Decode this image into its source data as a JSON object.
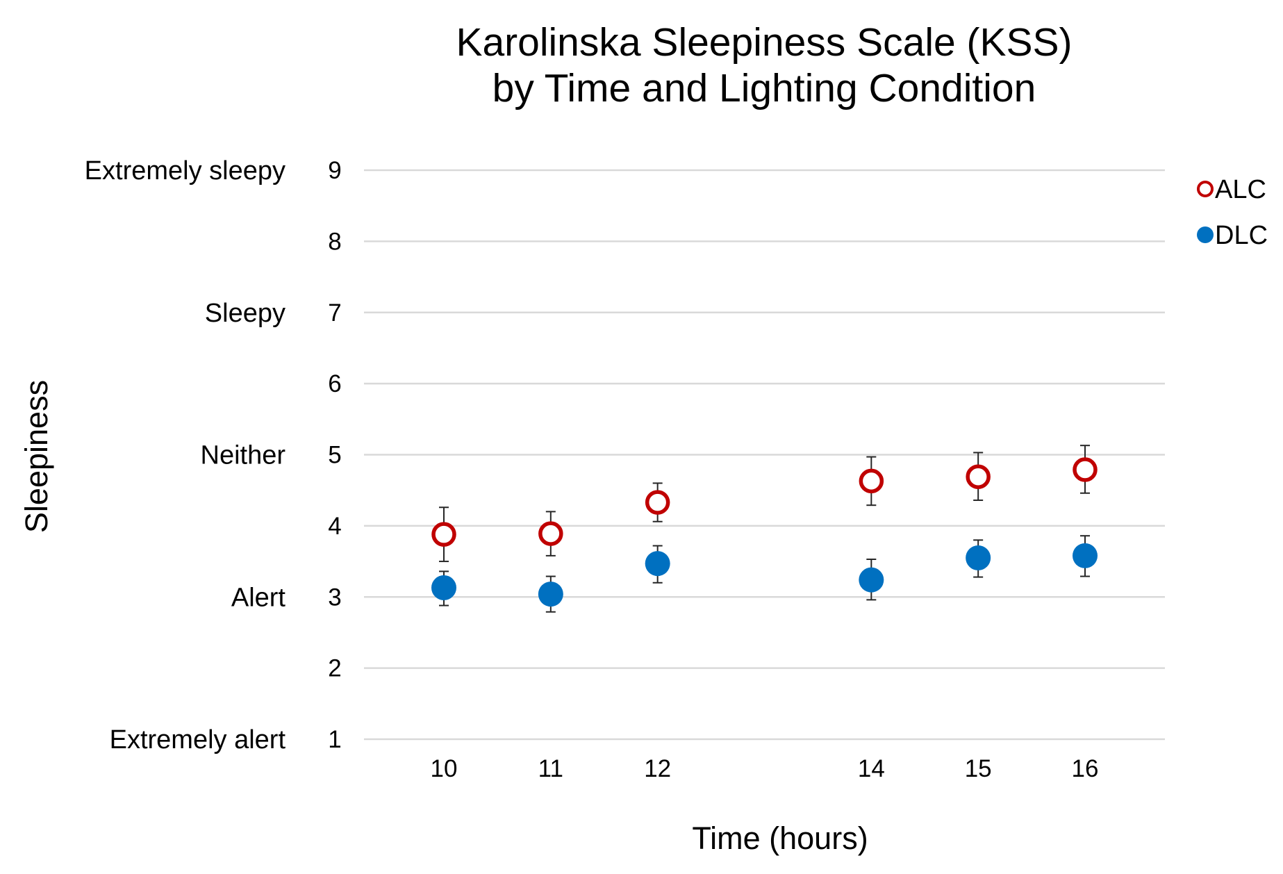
{
  "chart_data": {
    "type": "scatter",
    "title": [
      "Karolinska Sleepiness Scale (KSS)",
      "by Time and Lighting Condition"
    ],
    "xlabel": "Time (hours)",
    "ylabel": "Sleepiness",
    "x": [
      10,
      11,
      12,
      14,
      15,
      16
    ],
    "x_tick_labels": [
      "10",
      "11",
      "12",
      "14",
      "15",
      "16"
    ],
    "ylim": [
      1,
      9
    ],
    "y_ticks": [
      1,
      2,
      3,
      4,
      5,
      6,
      7,
      8,
      9
    ],
    "y_tick_labels": [
      "1",
      "2",
      "3",
      "4",
      "5",
      "6",
      "7",
      "8",
      "9"
    ],
    "y_anchor_labels": [
      {
        "value": 9,
        "label": "Extremely sleepy"
      },
      {
        "value": 7,
        "label": "Sleepy"
      },
      {
        "value": 5,
        "label": "Neither"
      },
      {
        "value": 3,
        "label": "Alert"
      },
      {
        "value": 1,
        "label": "Extremely alert"
      }
    ],
    "grid": true,
    "legend_position": "top-right",
    "series": [
      {
        "name": "ALC",
        "marker": "hollow-circle",
        "color": "#c00000",
        "values": [
          3.88,
          3.89,
          4.33,
          4.63,
          4.69,
          4.79
        ],
        "error_low": [
          3.5,
          3.58,
          4.06,
          4.29,
          4.36,
          4.46
        ],
        "error_high": [
          4.26,
          4.2,
          4.6,
          4.97,
          5.03,
          5.13
        ]
      },
      {
        "name": "DLC",
        "marker": "filled-circle",
        "color": "#0070c0",
        "values": [
          3.13,
          3.04,
          3.47,
          3.24,
          3.55,
          3.58
        ],
        "error_low": [
          2.88,
          2.79,
          3.2,
          2.96,
          3.28,
          3.29
        ],
        "error_high": [
          3.36,
          3.29,
          3.72,
          3.53,
          3.8,
          3.86
        ]
      }
    ]
  }
}
